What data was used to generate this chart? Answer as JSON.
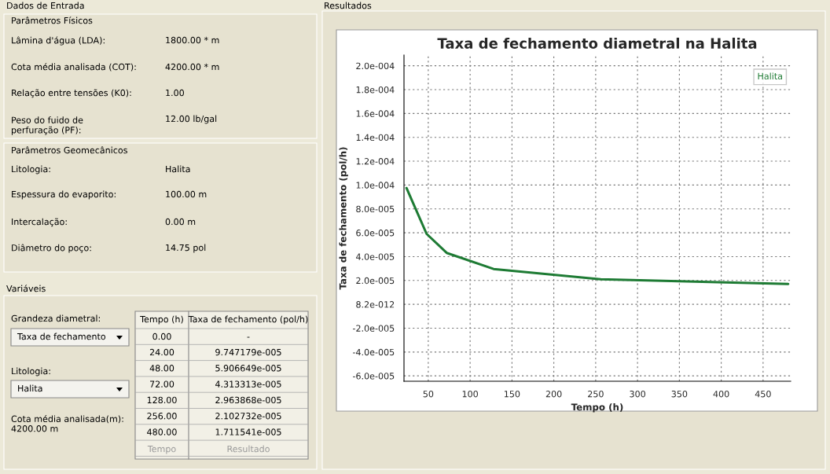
{
  "chart_data": {
    "type": "line",
    "title": "Taxa de fechamento diametral na Halita",
    "xlabel": "Tempo (h)",
    "ylabel": "Taxa de fechamento (pol/h)",
    "x": [
      24,
      48,
      72,
      128,
      256,
      480
    ],
    "series": [
      {
        "name": "Halita",
        "color": "#1e7b34",
        "values": [
          9.747179e-05,
          5.906649e-05,
          4.313313e-05,
          2.963868e-05,
          2.102732e-05,
          1.711541e-05
        ]
      }
    ],
    "xlim": [
      21,
      483
    ],
    "xticks": [
      50,
      100,
      150,
      200,
      250,
      300,
      350,
      400,
      450
    ],
    "ylim": [
      -6.45e-05,
      0.000209
    ],
    "yticks": [
      {
        "value": 0.0002,
        "label": "2.0e-004"
      },
      {
        "value": 0.00018,
        "label": "1.8e-004"
      },
      {
        "value": 0.00016,
        "label": "1.6e-004"
      },
      {
        "value": 0.00014,
        "label": "1.4e-004"
      },
      {
        "value": 0.00012,
        "label": "1.2e-004"
      },
      {
        "value": 0.0001,
        "label": "1.0e-004"
      },
      {
        "value": 8e-05,
        "label": "8.0e-005"
      },
      {
        "value": 6e-05,
        "label": "6.0e-005"
      },
      {
        "value": 4e-05,
        "label": "4.0e-005"
      },
      {
        "value": 2e-05,
        "label": "2.0e-005"
      },
      {
        "value": 8.2e-12,
        "label": "8.2e-012"
      },
      {
        "value": -2e-05,
        "label": "-2.0e-005"
      },
      {
        "value": -4e-05,
        "label": "-4.0e-005"
      },
      {
        "value": -6e-05,
        "label": "-6.0e-005"
      }
    ],
    "grid": true,
    "legend": "top right",
    "marker": "none",
    "line_style": "solid",
    "annotations": [
      "Dados de Entrada",
      "Parâmetros Físicos",
      "Lâmina d'água (LDA):",
      "1800.00 * m",
      "Cota média analisada (COT):",
      "4200.00 * m",
      "Relação entre tensões (K0):",
      "1.00",
      "Peso do fuido de\nperfuração (PF):",
      "12.00 lb/gal",
      "Parâmetros Geomecânicos",
      "Litologia:",
      "Halita",
      "Espessura do evaporito:",
      "100.00 m",
      "Intercalação:",
      "0.00 m",
      "Diâmetro do poço:",
      "14.75 pol",
      "Variáveis",
      "Grandeza diametral:",
      "Taxa de fechamento",
      "Litologia:",
      "Halita",
      "Cota média analisada(m):\n4200.00 m",
      "Resultados",
      "Tempo (h)",
      "Taxa de fechamento (pol/h)",
      "0.00",
      "-",
      "Tempo",
      "Resultado",
      "24.00",
      "48.00",
      "72.00",
      "128.00",
      "256.00",
      "480.00",
      "9.747179e-005",
      "5.906649e-005",
      "4.313313e-005",
      "2.963868e-005",
      "2.102732e-005",
      "1.711541e-005"
    ]
  }
}
